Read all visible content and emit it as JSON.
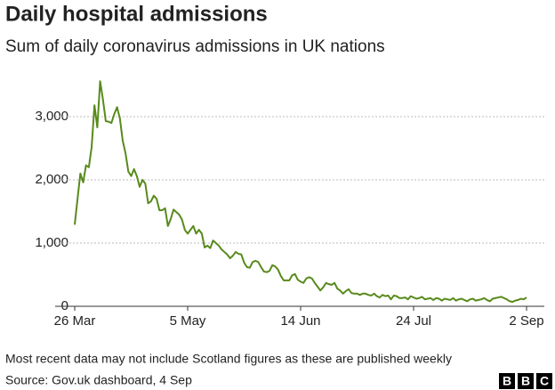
{
  "chart_data": {
    "type": "line",
    "title": "Daily hospital admissions",
    "subtitle": "Sum of daily coronavirus admissions in UK nations",
    "note": "Most recent data may not include Scotland figures as these are published weekly",
    "source": "Source: Gov.uk dashboard, 4 Sep",
    "logo": [
      "B",
      "B",
      "C"
    ],
    "categories": [
      "26 Mar",
      null,
      null,
      null,
      null,
      null,
      null,
      null,
      null,
      null,
      null,
      null,
      null,
      null,
      null,
      null,
      null,
      null,
      null,
      null,
      null,
      null,
      null,
      null,
      null,
      null,
      null,
      null,
      null,
      null,
      null,
      null,
      null,
      null,
      null,
      null,
      null,
      null,
      null,
      null,
      "5 May",
      null,
      null,
      null,
      null,
      null,
      null,
      null,
      null,
      null,
      null,
      null,
      null,
      null,
      null,
      null,
      null,
      null,
      null,
      null,
      null,
      null,
      null,
      null,
      null,
      null,
      null,
      null,
      null,
      null,
      null,
      null,
      null,
      null,
      null,
      null,
      null,
      null,
      null,
      null,
      "14 Jun",
      null,
      null,
      null,
      null,
      null,
      null,
      null,
      null,
      null,
      null,
      null,
      null,
      null,
      null,
      null,
      null,
      null,
      null,
      null,
      null,
      null,
      null,
      null,
      null,
      null,
      null,
      null,
      null,
      null,
      null,
      null,
      null,
      null,
      null,
      null,
      null,
      null,
      null,
      null,
      "24 Jul",
      null,
      null,
      null,
      null,
      null,
      null,
      null,
      null,
      null,
      null,
      null,
      null,
      null,
      null,
      null,
      null,
      null,
      null,
      null,
      null,
      null,
      null,
      null,
      null,
      null,
      null,
      null,
      null,
      null,
      null,
      null,
      null,
      null,
      null,
      null,
      null,
      null,
      null,
      null,
      "2 Sep"
    ],
    "values": [
      1290,
      1700,
      2100,
      1960,
      2230,
      2200,
      2520,
      3180,
      2830,
      3560,
      3270,
      2930,
      2920,
      2900,
      3040,
      3150,
      2970,
      2620,
      2420,
      2130,
      2060,
      2170,
      2060,
      1890,
      2000,
      1940,
      1630,
      1660,
      1750,
      1700,
      1520,
      1520,
      1550,
      1270,
      1380,
      1530,
      1490,
      1450,
      1370,
      1210,
      1150,
      1210,
      1270,
      1150,
      1210,
      1150,
      930,
      960,
      920,
      1040,
      1000,
      960,
      900,
      860,
      820,
      760,
      800,
      860,
      830,
      820,
      690,
      620,
      610,
      700,
      720,
      700,
      620,
      550,
      540,
      560,
      650,
      630,
      580,
      480,
      410,
      410,
      410,
      490,
      510,
      420,
      390,
      370,
      440,
      460,
      440,
      370,
      310,
      250,
      300,
      370,
      350,
      340,
      370,
      280,
      250,
      200,
      240,
      270,
      210,
      200,
      200,
      180,
      200,
      200,
      180,
      170,
      200,
      160,
      140,
      180,
      160,
      170,
      110,
      170,
      160,
      130,
      130,
      140,
      110,
      160,
      140,
      120,
      130,
      150,
      110,
      120,
      130,
      100,
      130,
      120,
      90,
      120,
      110,
      100,
      130,
      90,
      110,
      120,
      100,
      80,
      110,
      120,
      90,
      100,
      110,
      130,
      100,
      80,
      120,
      130,
      140,
      150,
      130,
      110,
      80,
      70,
      90,
      100,
      120,
      110,
      140
    ],
    "color": "#588a1b",
    "ylim": [
      0,
      3700
    ],
    "yticks": [
      0,
      {
        "value": 1000,
        "label": "1,000"
      },
      {
        "value": 2000,
        "label": "2,000"
      },
      {
        "value": 3000,
        "label": "3,000"
      }
    ],
    "grid": true
  }
}
